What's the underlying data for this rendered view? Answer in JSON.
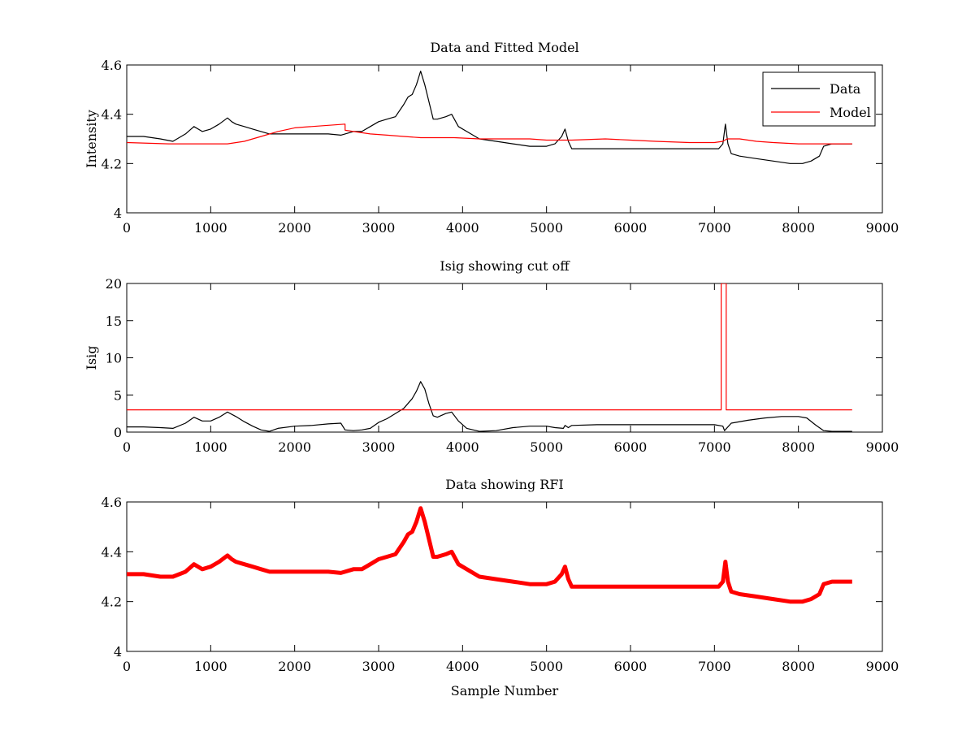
{
  "chart_data": [
    {
      "type": "line",
      "title": "Data and Fitted Model",
      "xlabel": "",
      "ylabel": "Intensity",
      "xlim": [
        0,
        9000
      ],
      "ylim": [
        4,
        4.6
      ],
      "xticks": [
        0,
        1000,
        2000,
        3000,
        4000,
        5000,
        6000,
        7000,
        8000,
        9000
      ],
      "yticks": [
        4,
        4.2,
        4.4,
        4.6
      ],
      "xtick_labels": [
        "0",
        "1000",
        "2000",
        "3000",
        "4000",
        "5000",
        "6000",
        "7000",
        "8000",
        "9000"
      ],
      "ytick_labels": [
        "4",
        "4.2",
        "4.4",
        "4.6"
      ],
      "legend": {
        "placement": "top-right",
        "entries": [
          "Data",
          "Model"
        ]
      },
      "grid": false,
      "series": [
        {
          "name": "Data",
          "color": "#000000",
          "x": [
            0,
            200,
            400,
            550,
            700,
            800,
            900,
            1000,
            1100,
            1200,
            1250,
            1300,
            1400,
            1500,
            1600,
            1700,
            1800,
            2000,
            2200,
            2400,
            2550,
            2600,
            2700,
            2800,
            2900,
            3000,
            3100,
            3200,
            3300,
            3350,
            3400,
            3450,
            3500,
            3550,
            3600,
            3650,
            3700,
            3800,
            3870,
            3950,
            4050,
            4200,
            4400,
            4600,
            4800,
            5000,
            5100,
            5180,
            5220,
            5260,
            5300,
            5400,
            5600,
            5800,
            6000,
            6300,
            6600,
            6900,
            7050,
            7100,
            7130,
            7160,
            7200,
            7300,
            7500,
            7700,
            7900,
            8050,
            8150,
            8250,
            8300,
            8400,
            8500,
            8640
          ],
          "values": [
            4.31,
            4.31,
            4.3,
            4.29,
            4.32,
            4.35,
            4.33,
            4.34,
            4.36,
            4.385,
            4.37,
            4.36,
            4.35,
            4.34,
            4.33,
            4.32,
            4.32,
            4.32,
            4.32,
            4.32,
            4.315,
            4.32,
            4.33,
            4.33,
            4.35,
            4.37,
            4.38,
            4.39,
            4.44,
            4.47,
            4.48,
            4.52,
            4.575,
            4.52,
            4.45,
            4.38,
            4.38,
            4.39,
            4.4,
            4.35,
            4.33,
            4.3,
            4.29,
            4.28,
            4.27,
            4.27,
            4.28,
            4.31,
            4.34,
            4.29,
            4.26,
            4.26,
            4.26,
            4.26,
            4.26,
            4.26,
            4.26,
            4.26,
            4.26,
            4.28,
            4.36,
            4.28,
            4.24,
            4.23,
            4.22,
            4.21,
            4.2,
            4.2,
            4.21,
            4.23,
            4.27,
            4.28,
            4.28,
            4.28
          ]
        },
        {
          "name": "Model",
          "color": "#ff0000",
          "x": [
            0,
            500,
            1000,
            1200,
            1400,
            1600,
            1800,
            2000,
            2200,
            2400,
            2600,
            2601,
            2700,
            2900,
            3100,
            3300,
            3500,
            3700,
            3900,
            4200,
            4500,
            4800,
            5000,
            5300,
            5700,
            6000,
            6300,
            6700,
            7000,
            7100,
            7150,
            7300,
            7500,
            7700,
            8000,
            8300,
            8640
          ],
          "values": [
            4.285,
            4.28,
            4.28,
            4.28,
            4.29,
            4.31,
            4.33,
            4.345,
            4.35,
            4.355,
            4.36,
            4.335,
            4.33,
            4.32,
            4.315,
            4.31,
            4.305,
            4.305,
            4.305,
            4.3,
            4.3,
            4.3,
            4.295,
            4.295,
            4.3,
            4.295,
            4.29,
            4.285,
            4.285,
            4.29,
            4.3,
            4.3,
            4.29,
            4.285,
            4.28,
            4.28,
            4.28
          ]
        }
      ]
    },
    {
      "type": "line",
      "title": "Isig showing cut off",
      "xlabel": "",
      "ylabel": "Isig",
      "xlim": [
        0,
        9000
      ],
      "ylim": [
        0,
        20
      ],
      "xticks": [
        0,
        1000,
        2000,
        3000,
        4000,
        5000,
        6000,
        7000,
        8000,
        9000
      ],
      "yticks": [
        0,
        5,
        10,
        15,
        20
      ],
      "xtick_labels": [
        "0",
        "1000",
        "2000",
        "3000",
        "4000",
        "5000",
        "6000",
        "7000",
        "8000",
        "9000"
      ],
      "ytick_labels": [
        "0",
        "5",
        "10",
        "15",
        "20"
      ],
      "grid": false,
      "series": [
        {
          "color": "#000000",
          "x": [
            0,
            200,
            400,
            550,
            700,
            800,
            900,
            1000,
            1100,
            1200,
            1300,
            1400,
            1500,
            1600,
            1700,
            1800,
            2000,
            2200,
            2400,
            2550,
            2600,
            2700,
            2800,
            2900,
            3000,
            3100,
            3200,
            3300,
            3400,
            3450,
            3500,
            3550,
            3600,
            3650,
            3700,
            3800,
            3870,
            3950,
            4050,
            4200,
            4400,
            4600,
            4800,
            5000,
            5100,
            5200,
            5220,
            5260,
            5300,
            5600,
            6000,
            6500,
            7000,
            7100,
            7120,
            7200,
            7400,
            7600,
            7800,
            8000,
            8100,
            8200,
            8300,
            8400,
            8640
          ],
          "values": [
            0.7,
            0.7,
            0.6,
            0.5,
            1.2,
            2.0,
            1.5,
            1.5,
            2.0,
            2.7,
            2.1,
            1.4,
            0.8,
            0.3,
            0.1,
            0.5,
            0.8,
            0.9,
            1.1,
            1.2,
            0.3,
            0.2,
            0.3,
            0.5,
            1.3,
            1.8,
            2.5,
            3.2,
            4.5,
            5.5,
            6.8,
            5.8,
            3.8,
            2.2,
            2.0,
            2.5,
            2.7,
            1.5,
            0.5,
            0.1,
            0.2,
            0.6,
            0.8,
            0.8,
            0.6,
            0.5,
            0.9,
            0.6,
            0.9,
            1.0,
            1.0,
            1.0,
            1.0,
            0.8,
            0.2,
            1.2,
            1.6,
            1.9,
            2.1,
            2.1,
            1.9,
            1.0,
            0.2,
            0.1,
            0.1
          ]
        },
        {
          "color": "#ff0000",
          "x": [
            0,
            7080,
            7080,
            7140,
            7140,
            8640
          ],
          "values": [
            3,
            3,
            20,
            20,
            3,
            3
          ]
        }
      ]
    },
    {
      "type": "line",
      "title": "Data showing RFI",
      "xlabel": "Sample Number",
      "ylabel": "",
      "xlim": [
        0,
        9000
      ],
      "ylim": [
        4,
        4.6
      ],
      "xticks": [
        0,
        1000,
        2000,
        3000,
        4000,
        5000,
        6000,
        7000,
        8000,
        9000
      ],
      "yticks": [
        4,
        4.2,
        4.4,
        4.6
      ],
      "xtick_labels": [
        "0",
        "1000",
        "2000",
        "3000",
        "4000",
        "5000",
        "6000",
        "7000",
        "8000",
        "9000"
      ],
      "ytick_labels": [
        "4",
        "4.2",
        "4.4",
        "4.6"
      ],
      "grid": false,
      "series": [
        {
          "color": "#ff0000",
          "x": [
            0,
            200,
            400,
            550,
            700,
            800,
            900,
            1000,
            1100,
            1200,
            1250,
            1300,
            1400,
            1500,
            1600,
            1700,
            1800,
            2000,
            2200,
            2400,
            2550,
            2600,
            2700,
            2800,
            2900,
            3000,
            3100,
            3200,
            3300,
            3350,
            3400,
            3450,
            3500,
            3550,
            3600,
            3650,
            3700,
            3800,
            3870,
            3950,
            4050,
            4200,
            4400,
            4600,
            4800,
            5000,
            5100,
            5180,
            5220,
            5260,
            5300,
            5400,
            5600,
            5800,
            6000,
            6300,
            6600,
            6900,
            7050,
            7100,
            7130,
            7160,
            7200,
            7300,
            7500,
            7700,
            7900,
            8050,
            8150,
            8250,
            8300,
            8400,
            8500,
            8640
          ],
          "values": [
            4.31,
            4.31,
            4.3,
            4.3,
            4.32,
            4.35,
            4.33,
            4.34,
            4.36,
            4.385,
            4.37,
            4.36,
            4.35,
            4.34,
            4.33,
            4.32,
            4.32,
            4.32,
            4.32,
            4.32,
            4.315,
            4.32,
            4.33,
            4.33,
            4.35,
            4.37,
            4.38,
            4.39,
            4.44,
            4.47,
            4.48,
            4.52,
            4.575,
            4.52,
            4.45,
            4.38,
            4.38,
            4.39,
            4.4,
            4.35,
            4.33,
            4.3,
            4.29,
            4.28,
            4.27,
            4.27,
            4.28,
            4.31,
            4.34,
            4.29,
            4.26,
            4.26,
            4.26,
            4.26,
            4.26,
            4.26,
            4.26,
            4.26,
            4.26,
            4.28,
            4.36,
            4.28,
            4.24,
            4.23,
            4.22,
            4.21,
            4.2,
            4.2,
            4.21,
            4.23,
            4.27,
            4.28,
            4.28,
            4.28
          ]
        }
      ]
    }
  ]
}
